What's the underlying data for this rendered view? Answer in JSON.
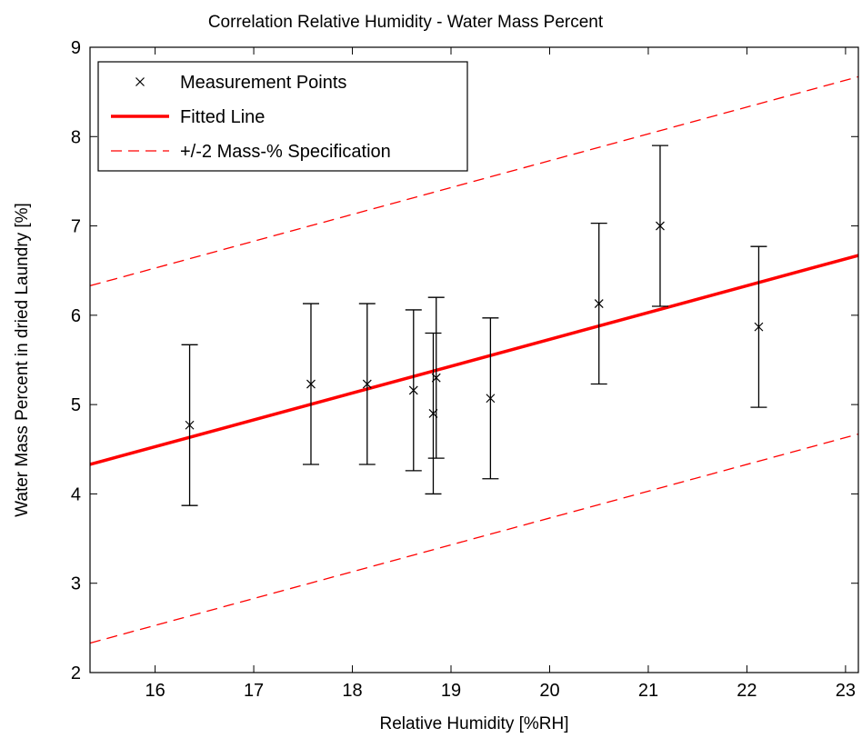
{
  "chart_data": {
    "type": "scatter",
    "title": "Correlation Relative Humidity - Water Mass Percent",
    "xlabel": "Relative Humidity [%RH]",
    "ylabel": "Water Mass Percent in dried Laundry [%]",
    "xlim": [
      15.34,
      23.13
    ],
    "ylim": [
      2,
      9
    ],
    "xticks": [
      16,
      17,
      18,
      19,
      20,
      21,
      22,
      23
    ],
    "yticks": [
      2,
      3,
      4,
      5,
      6,
      7,
      8,
      9
    ],
    "grid": false,
    "legend_position": "top-left",
    "colors": {
      "points": "#000000",
      "fit": "#ff0000",
      "spec": "#ff0000"
    },
    "series": [
      {
        "name": "Measurement Points",
        "kind": "scatter-errorbar",
        "points": [
          {
            "x": 16.35,
            "y": 4.77,
            "lo": 3.87,
            "hi": 5.67
          },
          {
            "x": 17.58,
            "y": 5.23,
            "lo": 4.33,
            "hi": 6.13
          },
          {
            "x": 18.15,
            "y": 5.23,
            "lo": 4.33,
            "hi": 6.13
          },
          {
            "x": 18.62,
            "y": 5.16,
            "lo": 4.26,
            "hi": 6.06
          },
          {
            "x": 18.82,
            "y": 4.9,
            "lo": 4.0,
            "hi": 5.8
          },
          {
            "x": 18.85,
            "y": 5.3,
            "lo": 4.4,
            "hi": 6.2
          },
          {
            "x": 19.4,
            "y": 5.07,
            "lo": 4.17,
            "hi": 5.97
          },
          {
            "x": 20.5,
            "y": 6.13,
            "lo": 5.23,
            "hi": 7.03
          },
          {
            "x": 21.12,
            "y": 7.0,
            "lo": 6.1,
            "hi": 7.9
          },
          {
            "x": 22.12,
            "y": 5.87,
            "lo": 4.97,
            "hi": 6.77
          }
        ]
      },
      {
        "name": "Fitted Line",
        "kind": "line",
        "x": [
          15.34,
          23.13
        ],
        "y": [
          4.33,
          6.67
        ]
      },
      {
        "name": "+/-2 Mass-% Specification",
        "kind": "dashed-band",
        "x": [
          15.34,
          23.13
        ],
        "upper": [
          6.33,
          8.67
        ],
        "lower": [
          2.33,
          4.67
        ]
      }
    ]
  }
}
